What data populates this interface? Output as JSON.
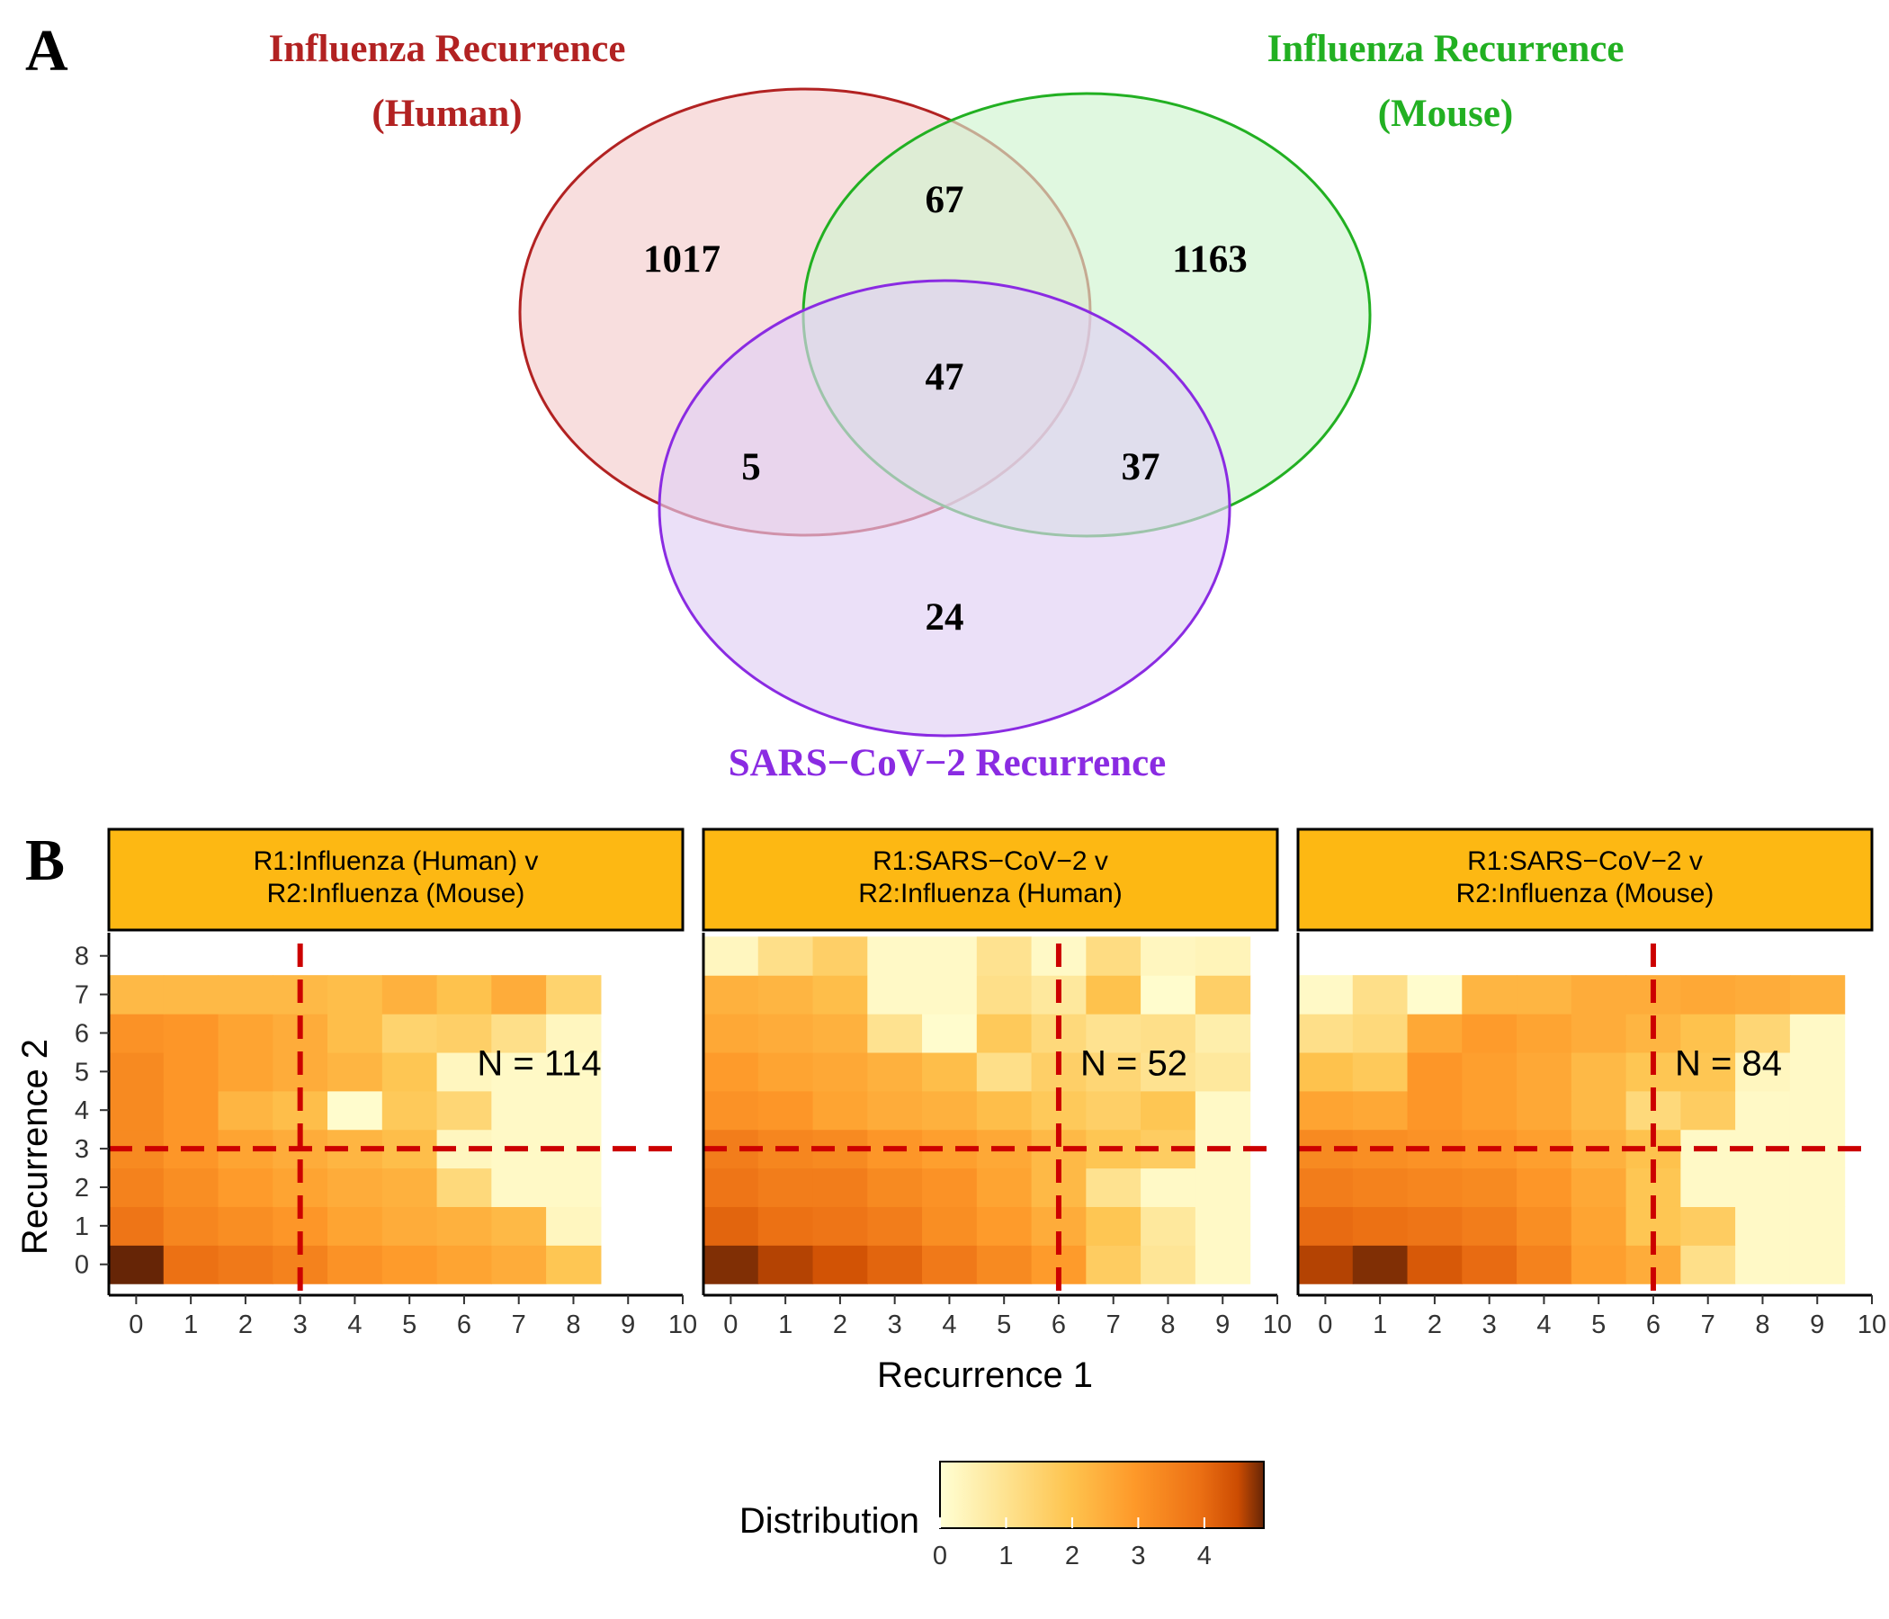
{
  "panel_labels": {
    "a": "A",
    "b": "B"
  },
  "chart_data": [
    {
      "type": "venn",
      "sets": [
        {
          "key": "human",
          "title_lines": [
            "Influenza Recurrence",
            "(Human)"
          ],
          "color": "#b22222",
          "fill": "#f4cccc"
        },
        {
          "key": "mouse",
          "title_lines": [
            "Influenza Recurrence",
            "(Mouse)"
          ],
          "color": "#22b022",
          "fill": "#cff4cf"
        },
        {
          "key": "sars",
          "title_lines": [
            "SARS−CoV−2 Recurrence"
          ],
          "color": "#8a2be2",
          "fill": "#e0d0f4"
        }
      ],
      "regions": {
        "human_only": "1017",
        "mouse_only": "1163",
        "sars_only": "24",
        "human_mouse": "67",
        "human_sars": "5",
        "mouse_sars": "37",
        "all_three": "47"
      }
    },
    {
      "type": "heatmap",
      "xlabel": "Recurrence 1",
      "ylabel": "Recurrence 2",
      "x_ticks": [
        "0",
        "1",
        "2",
        "3",
        "4",
        "5",
        "6",
        "7",
        "8",
        "9",
        "10"
      ],
      "y_ticks": [
        "0",
        "1",
        "2",
        "3",
        "4",
        "5",
        "6",
        "7",
        "8"
      ],
      "legend": {
        "title": "Distribution",
        "ticks": [
          "0",
          "1",
          "2",
          "3",
          "4"
        ],
        "range": [
          0,
          4.9
        ]
      },
      "threshold_color": "#cc0000",
      "facets": [
        {
          "strip": [
            "R1:Influenza (Human) v",
            "R2:Influenza (Mouse)"
          ],
          "n_label": "N = 114",
          "vline": 3,
          "hline": 3,
          "grid": [
            [
              4.9,
              3.9,
              3.7,
              3.5,
              3.1,
              2.9,
              2.7,
              2.5,
              1.9
            ],
            [
              3.8,
              3.4,
              3.2,
              3.0,
              2.7,
              2.5,
              2.4,
              2.2,
              0.3
            ],
            [
              3.5,
              3.2,
              2.9,
              2.7,
              2.5,
              2.4,
              1.3,
              0.2,
              0.2
            ],
            [
              3.3,
              3.0,
              2.7,
              2.5,
              2.3,
              2.1,
              0.3,
              0.2,
              0.2
            ],
            [
              3.3,
              3.0,
              2.3,
              2.1,
              0.1,
              1.8,
              1.4,
              0.2,
              0.2
            ],
            [
              3.3,
              3.0,
              2.7,
              2.5,
              2.3,
              1.9,
              0.3,
              0.2,
              0.2
            ],
            [
              3.1,
              3.0,
              2.7,
              2.5,
              2.1,
              1.5,
              1.6,
              1.1,
              0.3
            ],
            [
              2.2,
              2.2,
              2.2,
              2.2,
              2.1,
              2.4,
              2.0,
              2.5,
              1.5
            ]
          ]
        },
        {
          "strip": [
            "R1:SARS−CoV−2 v",
            "R2:Influenza (Human)"
          ],
          "n_label": "N = 52",
          "vline": 6,
          "hline": 3,
          "grid": [
            [
              4.8,
              4.6,
              4.4,
              4.1,
              3.7,
              3.3,
              2.9,
              1.7,
              0.9,
              0.2
            ],
            [
              4.1,
              3.9,
              3.8,
              3.6,
              3.2,
              2.9,
              2.5,
              1.9,
              0.8,
              0.2
            ],
            [
              3.8,
              3.6,
              3.6,
              3.3,
              3.1,
              2.7,
              2.2,
              1.0,
              0.2,
              0.2
            ],
            [
              3.6,
              3.4,
              3.3,
              3.0,
              2.8,
              2.6,
              2.2,
              1.9,
              1.7,
              0.2
            ],
            [
              3.1,
              3.0,
              2.7,
              2.5,
              2.4,
              2.1,
              1.8,
              1.6,
              1.9,
              0.2
            ],
            [
              2.9,
              2.7,
              2.6,
              2.4,
              2.1,
              1.1,
              1.6,
              1.4,
              1.0,
              0.8
            ],
            [
              2.6,
              2.5,
              2.4,
              1.0,
              0.1,
              1.8,
              1.3,
              1.0,
              1.1,
              0.6
            ],
            [
              2.4,
              2.3,
              2.1,
              0.2,
              0.2,
              1.1,
              0.8,
              2.0,
              0.1,
              1.6
            ],
            [
              0.3,
              1.1,
              1.6,
              0.2,
              0.2,
              1.0,
              0.2,
              1.2,
              0.3,
              0.4
            ]
          ]
        },
        {
          "strip": [
            "R1:SARS−CoV−2 v",
            "R2:Influenza (Mouse)"
          ],
          "n_label": "N = 84",
          "vline": 6,
          "hline": 3,
          "grid": [
            [
              4.6,
              4.8,
              4.3,
              4.0,
              3.5,
              2.8,
              2.5,
              1.1,
              0.2,
              0.2
            ],
            [
              4.0,
              3.9,
              3.8,
              3.6,
              3.2,
              2.7,
              1.9,
              1.7,
              0.2,
              0.2
            ],
            [
              3.6,
              3.5,
              3.4,
              3.3,
              3.0,
              2.6,
              1.9,
              0.2,
              0.2,
              0.2
            ],
            [
              3.3,
              3.2,
              3.1,
              3.0,
              2.8,
              2.4,
              2.0,
              0.2,
              0.2,
              0.2
            ],
            [
              2.7,
              2.6,
              3.0,
              2.8,
              2.6,
              2.2,
              1.3,
              1.7,
              0.2,
              0.2
            ],
            [
              2.0,
              1.8,
              3.0,
              2.8,
              2.6,
              2.2,
              1.9,
              1.9,
              0.3,
              0.2
            ],
            [
              1.1,
              1.3,
              2.6,
              2.9,
              2.7,
              2.5,
              2.3,
              2.0,
              1.4,
              0.2
            ],
            [
              0.2,
              1.1,
              0.1,
              2.3,
              2.3,
              2.5,
              2.5,
              2.6,
              2.5,
              2.4
            ]
          ]
        }
      ]
    }
  ]
}
